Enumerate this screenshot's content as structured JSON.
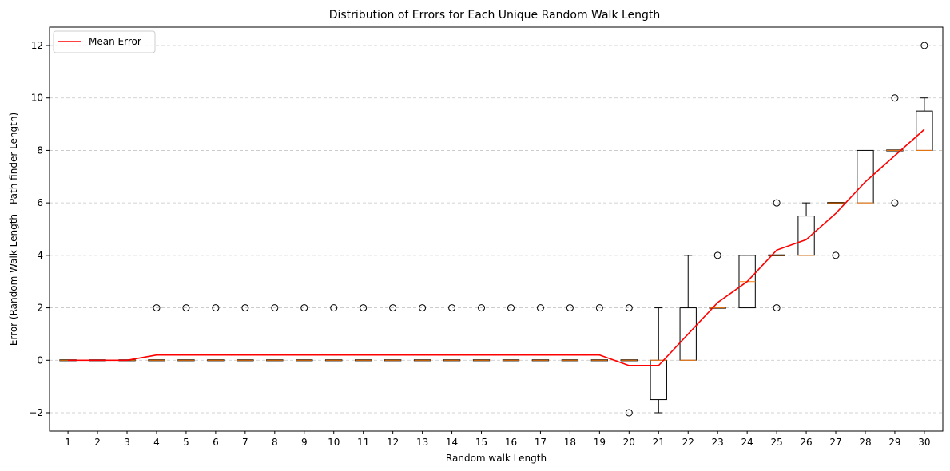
{
  "chart_data": {
    "type": "box",
    "title": "Distribution of Errors for Each Unique Random Walk Length",
    "xlabel": "Random walk Length",
    "ylabel": "Error (Random Walk Length - Path finder Length)",
    "ylim": [
      -2.7,
      12.7
    ],
    "yticks": [
      -2,
      0,
      2,
      4,
      6,
      8,
      10,
      12
    ],
    "grid": "horizontal dashed",
    "legend_position": "top-left",
    "categories": [
      "1",
      "2",
      "3",
      "4",
      "5",
      "6",
      "7",
      "8",
      "9",
      "10",
      "11",
      "12",
      "13",
      "14",
      "15",
      "16",
      "17",
      "18",
      "19",
      "20",
      "21",
      "22",
      "23",
      "24",
      "25",
      "26",
      "27",
      "28",
      "29",
      "30"
    ],
    "boxes": [
      {
        "x": "1",
        "q1": 0,
        "median": 0,
        "q3": 0,
        "whisker_low": 0,
        "whisker_high": 0,
        "outliers": []
      },
      {
        "x": "2",
        "q1": 0,
        "median": 0,
        "q3": 0,
        "whisker_low": 0,
        "whisker_high": 0,
        "outliers": []
      },
      {
        "x": "3",
        "q1": 0,
        "median": 0,
        "q3": 0,
        "whisker_low": 0,
        "whisker_high": 0,
        "outliers": []
      },
      {
        "x": "4",
        "q1": 0,
        "median": 0,
        "q3": 0,
        "whisker_low": 0,
        "whisker_high": 0,
        "outliers": [
          2
        ]
      },
      {
        "x": "5",
        "q1": 0,
        "median": 0,
        "q3": 0,
        "whisker_low": 0,
        "whisker_high": 0,
        "outliers": [
          2
        ]
      },
      {
        "x": "6",
        "q1": 0,
        "median": 0,
        "q3": 0,
        "whisker_low": 0,
        "whisker_high": 0,
        "outliers": [
          2
        ]
      },
      {
        "x": "7",
        "q1": 0,
        "median": 0,
        "q3": 0,
        "whisker_low": 0,
        "whisker_high": 0,
        "outliers": [
          2
        ]
      },
      {
        "x": "8",
        "q1": 0,
        "median": 0,
        "q3": 0,
        "whisker_low": 0,
        "whisker_high": 0,
        "outliers": [
          2
        ]
      },
      {
        "x": "9",
        "q1": 0,
        "median": 0,
        "q3": 0,
        "whisker_low": 0,
        "whisker_high": 0,
        "outliers": [
          2
        ]
      },
      {
        "x": "10",
        "q1": 0,
        "median": 0,
        "q3": 0,
        "whisker_low": 0,
        "whisker_high": 0,
        "outliers": [
          2
        ]
      },
      {
        "x": "11",
        "q1": 0,
        "median": 0,
        "q3": 0,
        "whisker_low": 0,
        "whisker_high": 0,
        "outliers": [
          2
        ]
      },
      {
        "x": "12",
        "q1": 0,
        "median": 0,
        "q3": 0,
        "whisker_low": 0,
        "whisker_high": 0,
        "outliers": [
          2
        ]
      },
      {
        "x": "13",
        "q1": 0,
        "median": 0,
        "q3": 0,
        "whisker_low": 0,
        "whisker_high": 0,
        "outliers": [
          2
        ]
      },
      {
        "x": "14",
        "q1": 0,
        "median": 0,
        "q3": 0,
        "whisker_low": 0,
        "whisker_high": 0,
        "outliers": [
          2
        ]
      },
      {
        "x": "15",
        "q1": 0,
        "median": 0,
        "q3": 0,
        "whisker_low": 0,
        "whisker_high": 0,
        "outliers": [
          2
        ]
      },
      {
        "x": "16",
        "q1": 0,
        "median": 0,
        "q3": 0,
        "whisker_low": 0,
        "whisker_high": 0,
        "outliers": [
          2
        ]
      },
      {
        "x": "17",
        "q1": 0,
        "median": 0,
        "q3": 0,
        "whisker_low": 0,
        "whisker_high": 0,
        "outliers": [
          2
        ]
      },
      {
        "x": "18",
        "q1": 0,
        "median": 0,
        "q3": 0,
        "whisker_low": 0,
        "whisker_high": 0,
        "outliers": [
          2
        ]
      },
      {
        "x": "19",
        "q1": 0,
        "median": 0,
        "q3": 0,
        "whisker_low": 0,
        "whisker_high": 0,
        "outliers": [
          2
        ]
      },
      {
        "x": "20",
        "q1": 0,
        "median": 0,
        "q3": 0,
        "whisker_low": 0,
        "whisker_high": 0,
        "outliers": [
          2,
          -2
        ]
      },
      {
        "x": "21",
        "q1": -1.5,
        "median": 0,
        "q3": 0,
        "whisker_low": -2,
        "whisker_high": 2,
        "outliers": []
      },
      {
        "x": "22",
        "q1": 0,
        "median": 0,
        "q3": 2,
        "whisker_low": 0,
        "whisker_high": 4,
        "outliers": []
      },
      {
        "x": "23",
        "q1": 2,
        "median": 2,
        "q3": 2,
        "whisker_low": 2,
        "whisker_high": 2,
        "outliers": [
          4
        ]
      },
      {
        "x": "24",
        "q1": 2,
        "median": 3,
        "q3": 4,
        "whisker_low": 2,
        "whisker_high": 4,
        "outliers": []
      },
      {
        "x": "25",
        "q1": 4,
        "median": 4,
        "q3": 4,
        "whisker_low": 4,
        "whisker_high": 4,
        "outliers": [
          6,
          2
        ]
      },
      {
        "x": "26",
        "q1": 4,
        "median": 4,
        "q3": 5.5,
        "whisker_low": 4,
        "whisker_high": 6,
        "outliers": []
      },
      {
        "x": "27",
        "q1": 6,
        "median": 6,
        "q3": 6,
        "whisker_low": 6,
        "whisker_high": 6,
        "outliers": [
          4
        ]
      },
      {
        "x": "28",
        "q1": 6,
        "median": 6,
        "q3": 8,
        "whisker_low": 6,
        "whisker_high": 8,
        "outliers": []
      },
      {
        "x": "29",
        "q1": 8,
        "median": 8,
        "q3": 8,
        "whisker_low": 8,
        "whisker_high": 8,
        "outliers": [
          10,
          6
        ]
      },
      {
        "x": "30",
        "q1": 8,
        "median": 8,
        "q3": 9.5,
        "whisker_low": 8,
        "whisker_high": 10,
        "outliers": [
          12
        ]
      }
    ],
    "series": [
      {
        "name": "Mean Error",
        "type": "line",
        "color": "#ff0000",
        "values": [
          0,
          0,
          0,
          0.2,
          0.2,
          0.2,
          0.2,
          0.2,
          0.2,
          0.2,
          0.2,
          0.2,
          0.2,
          0.2,
          0.2,
          0.2,
          0.2,
          0.2,
          0.2,
          -0.2,
          -0.2,
          1.0,
          2.2,
          3.0,
          4.2,
          4.6,
          5.6,
          6.8,
          7.8,
          8.8
        ]
      }
    ],
    "colors": {
      "box": "#000000",
      "median": "#ff7f0e",
      "grid": "#b0b0b0"
    }
  }
}
